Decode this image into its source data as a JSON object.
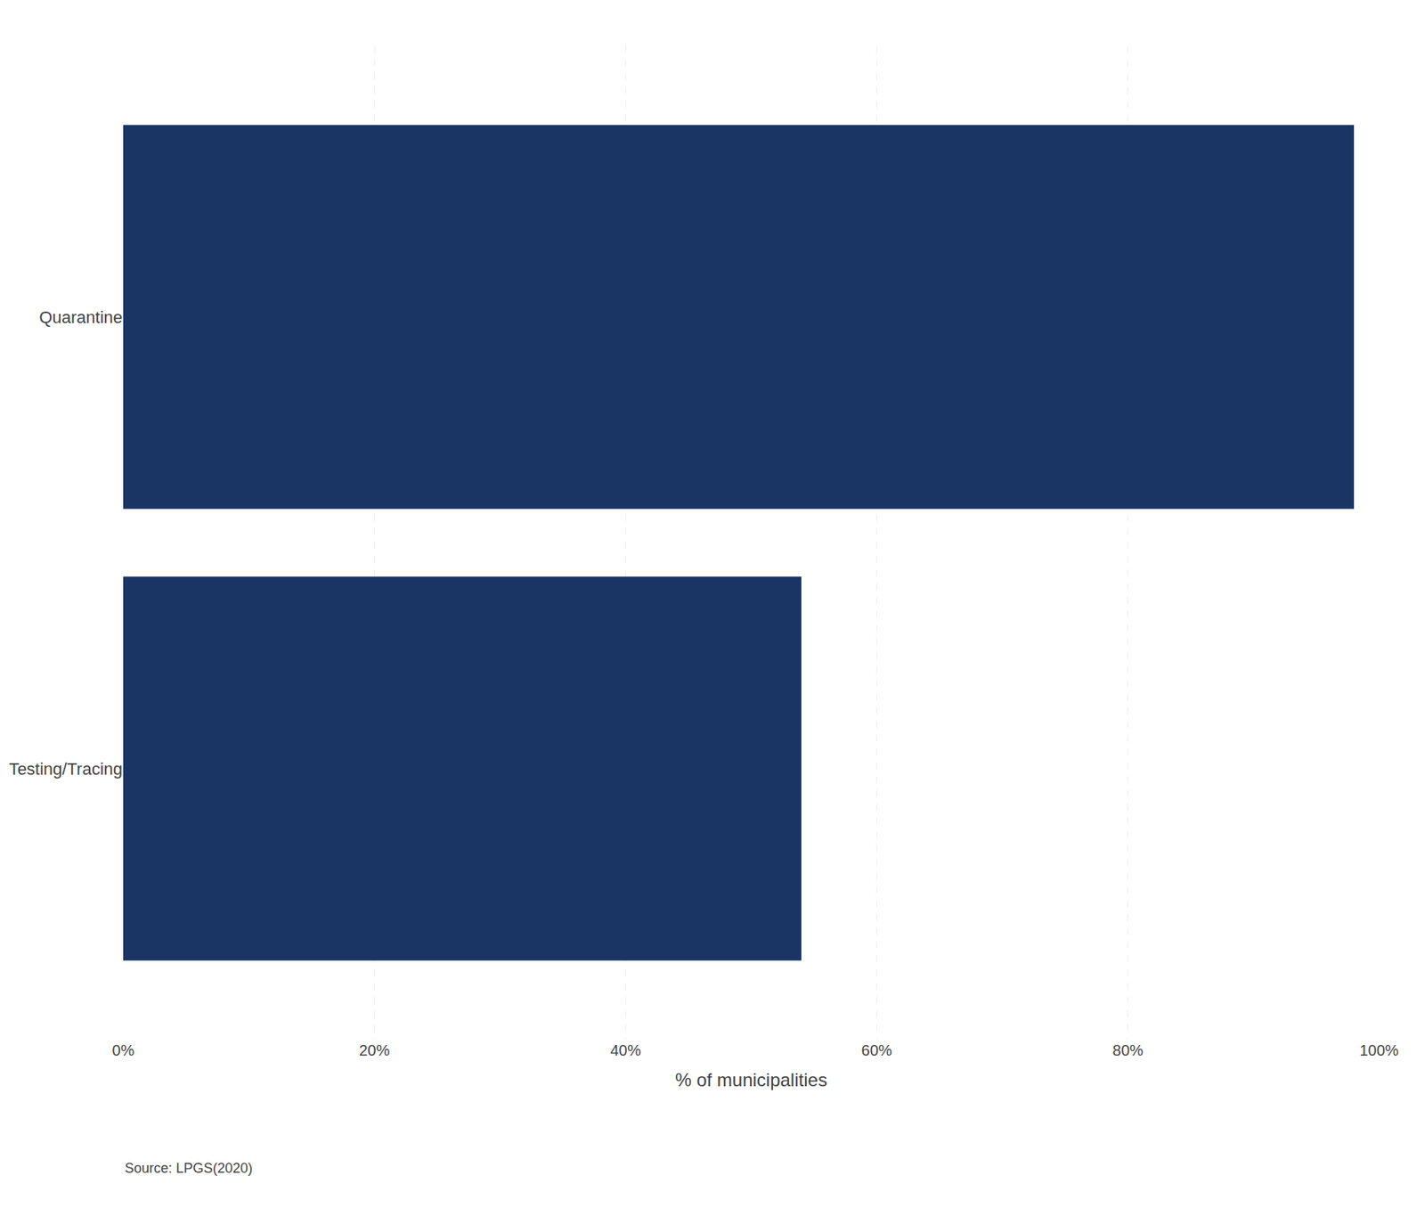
{
  "chart_data": {
    "type": "bar",
    "orientation": "horizontal",
    "categories": [
      "Testing/Tracing",
      "Quarantine"
    ],
    "values": [
      54,
      98
    ],
    "color": "#1a3464",
    "xlabel": "% of municipalities",
    "xlim": [
      0,
      100
    ],
    "xticks": [
      {
        "value": 0,
        "label": "0%"
      },
      {
        "value": 20,
        "label": "20%"
      },
      {
        "value": 40,
        "label": "40%"
      },
      {
        "value": 60,
        "label": "60%"
      },
      {
        "value": 80,
        "label": "80%"
      },
      {
        "value": 100,
        "label": "100%"
      }
    ],
    "grid": true,
    "annotations": [
      "Source: LPGS(2020)"
    ]
  }
}
